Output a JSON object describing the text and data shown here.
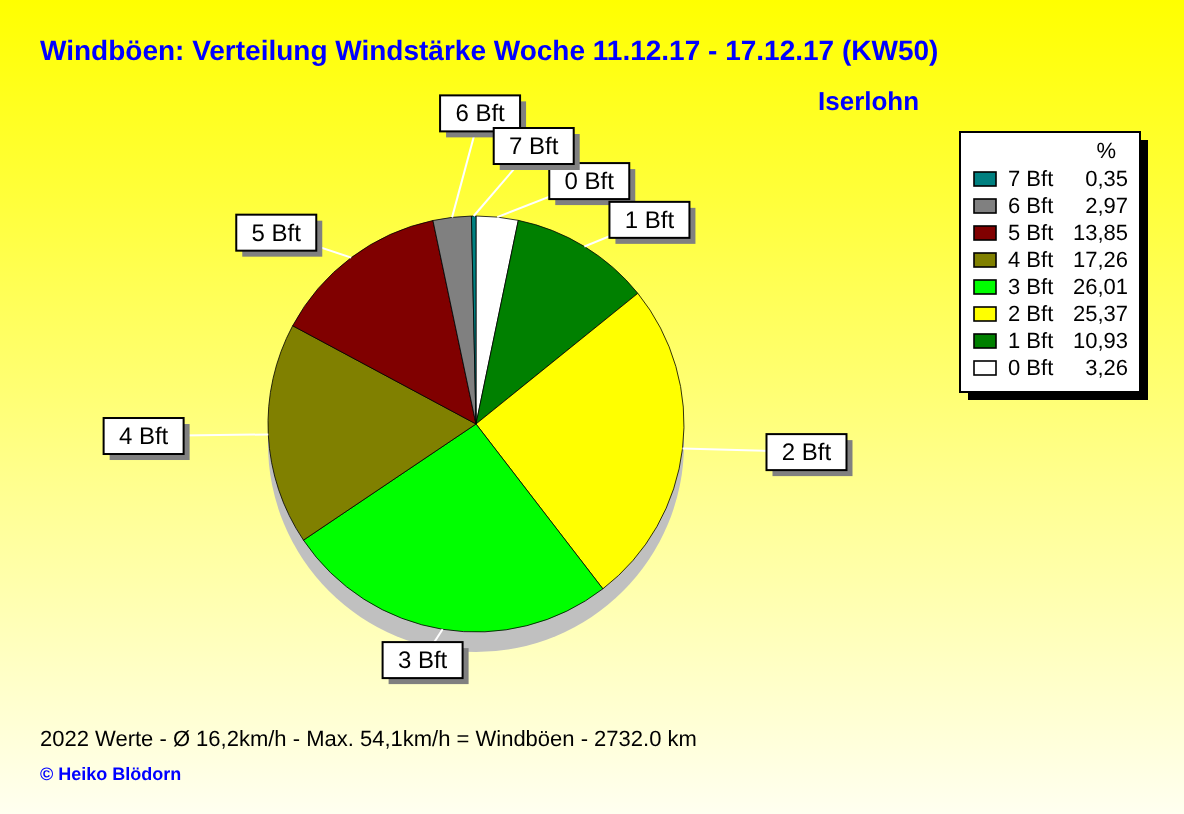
{
  "chart_data": {
    "type": "pie",
    "title": "Windböen: Verteilung Windstärke  Woche 11.12.17 - 17.12.17 (KW50)",
    "subtitle": "Iserlohn",
    "legend_title": "%",
    "categories": [
      "0 Bft",
      "1 Bft",
      "2 Bft",
      "3 Bft",
      "4 Bft",
      "5 Bft",
      "6 Bft",
      "7 Bft"
    ],
    "values": [
      3.26,
      10.93,
      25.37,
      26.01,
      17.26,
      13.85,
      2.97,
      0.35
    ],
    "value_labels": [
      "3,26",
      "10,93",
      "25,37",
      "26,01",
      "17,26",
      "13,85",
      "2,97",
      "0,35"
    ],
    "colors": [
      "#ffffff",
      "#008000",
      "#ffff00",
      "#00ff00",
      "#808000",
      "#800000",
      "#808080",
      "#008080"
    ],
    "legend": "top right",
    "annotations": [
      "2022 Werte   -   Ø 16,2km/h  -  Max. 54,1km/h = Windböen   -   2732.0 km",
      "© Heiko Blödorn"
    ]
  }
}
